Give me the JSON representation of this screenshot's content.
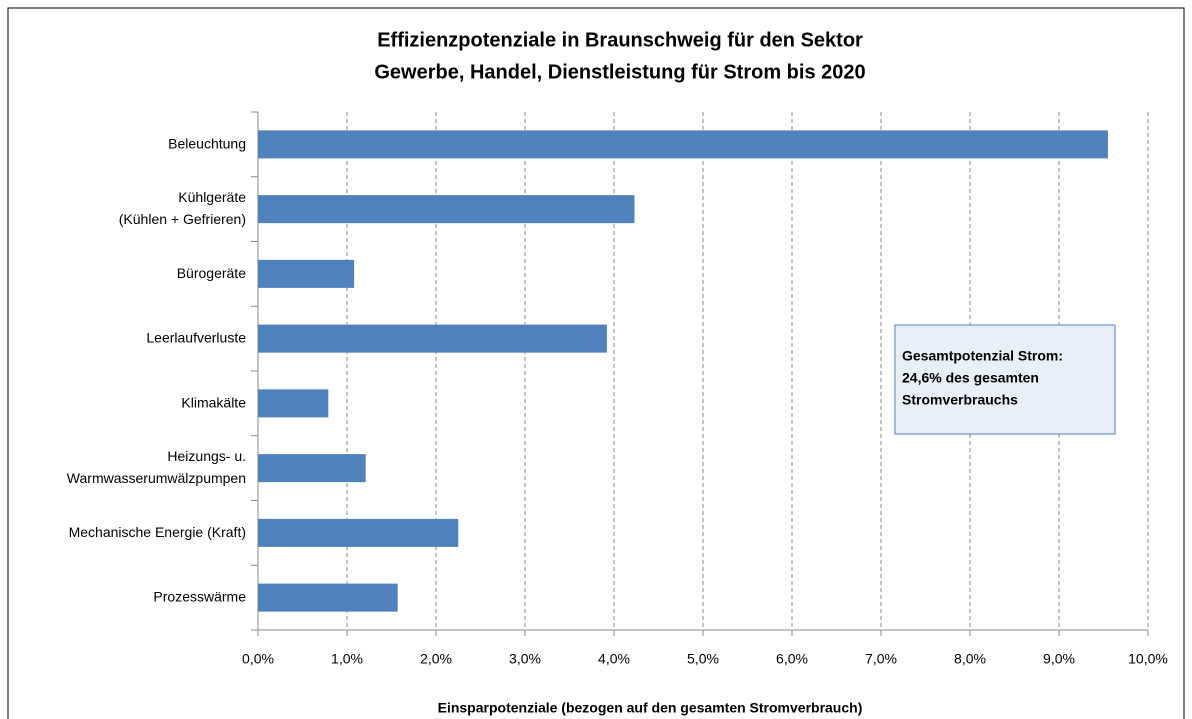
{
  "chart_data": {
    "type": "bar",
    "orientation": "horizontal",
    "title": [
      "Effizienzpotenziale in Braunschweig für den Sektor",
      "Gewerbe, Handel, Dienstleistung für Strom bis 2020"
    ],
    "x_label": "Einsparpotenziale  (bezogen auf den gesamten Stromverbrauch)",
    "categories": [
      "Beleuchtung",
      "Kühlgeräte\n(Kühlen + Gefrieren)",
      "Bürogeräte",
      "Leerlaufverluste",
      "Klimakälte",
      "Heizungs- u.\nWarmwasserumwälzpumpen",
      "Mechanische Energie (Kraft)",
      "Prozesswärme"
    ],
    "values": [
      9.55,
      4.23,
      1.08,
      3.92,
      0.79,
      1.21,
      2.25,
      1.57
    ],
    "color": "#4f81bd",
    "xlim": [
      0,
      10
    ],
    "xticks": [
      {
        "value": 0,
        "label": "0,0%"
      },
      {
        "value": 1,
        "label": "1,0%"
      },
      {
        "value": 2,
        "label": "2,0%"
      },
      {
        "value": 3,
        "label": "3,0%"
      },
      {
        "value": 4,
        "label": "4,0%"
      },
      {
        "value": 5,
        "label": "5,0%"
      },
      {
        "value": 6,
        "label": "6,0%"
      },
      {
        "value": 7,
        "label": "7,0%"
      },
      {
        "value": 8,
        "label": "8,0%"
      },
      {
        "value": 9,
        "label": "9,0%"
      },
      {
        "value": 10,
        "label": "10,0%"
      }
    ],
    "grid": true,
    "annotation": [
      "Gesamtpotenzial Strom:",
      "24,6% des gesamten",
      "Stromverbrauchs"
    ]
  }
}
